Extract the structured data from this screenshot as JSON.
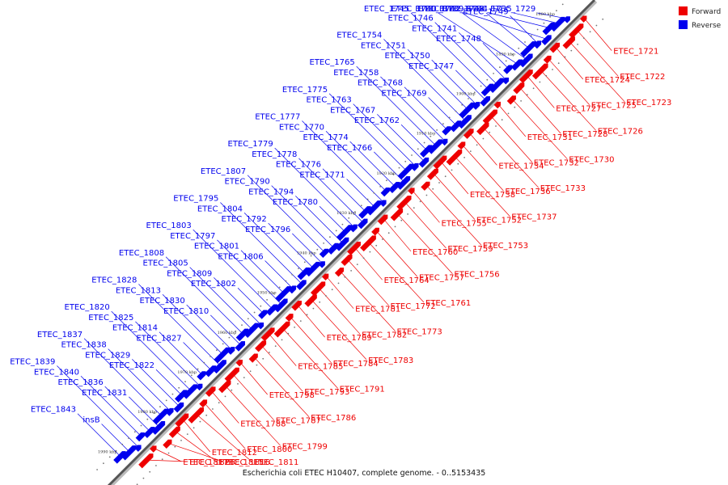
{
  "caption": "Escherichia coli ETEC H10407, complete genome. - 0..5153435",
  "legend": [
    {
      "label": "Forward",
      "color": "#ee0000"
    },
    {
      "label": "Reverse",
      "color": "#0000ee"
    }
  ],
  "colors": {
    "forward": "#ee0000",
    "reverse": "#0000ee",
    "backbone": "#555555"
  },
  "ticks": [
    "1880 kbp",
    "1890 kbp",
    "1900 kbp",
    "1910 kbp",
    "1920 kbp",
    "1930 kbp",
    "1940 kbp",
    "1950 kbp",
    "1960 kbp",
    "1970 kbp",
    "1980 kbp",
    "1990 kbp"
  ],
  "forward_genes": [
    "ETEC_1721",
    "ETEC_1722",
    "ETEC_1723",
    "ETEC_1724",
    "ETEC_1725",
    "ETEC_1726",
    "ETEC_1727",
    "ETEC_1728",
    "ETEC_1730",
    "ETEC_1731",
    "ETEC_1732",
    "ETEC_1733",
    "ETEC_1734",
    "ETEC_1736",
    "ETEC_1737",
    "ETEC_1738",
    "ETEC_1752",
    "ETEC_1753",
    "ETEC_1755",
    "ETEC_1759",
    "ETEC_1756",
    "ETEC_1760",
    "ETEC_1757",
    "ETEC_1761",
    "ETEC_1764",
    "ETEC_1772",
    "ETEC_1773",
    "ETEC_1781",
    "ETEC_1782",
    "ETEC_1783",
    "ETEC_1789",
    "ETEC_1784",
    "ETEC_1791",
    "ETEC_1785",
    "ETEC_1793",
    "ETEC_1786",
    "ETEC_1798",
    "ETEC_1787",
    "ETEC_1799",
    "ETEC_1788",
    "ETEC_1800",
    "ETEC_1811",
    "ETEC_1812",
    "ETEC_1815",
    "ETEC_1816",
    "ETEC_1817",
    "ETEC_1826"
  ],
  "reverse_genes": [
    "ETEC_1729",
    "ETEC_1735",
    "ETEC_1744",
    "ETEC_1739",
    "ETEC_1749",
    "ETEC_1743",
    "ETEC_1742",
    "ETEC_1740",
    "ETEC_1748",
    "ETEC_1741",
    "ETEC_1746",
    "ETEC_1745",
    "ETEC_1747",
    "ETEC_1750",
    "ETEC_1751",
    "ETEC_1754",
    "ETEC_1769",
    "ETEC_1768",
    "ETEC_1758",
    "ETEC_1765",
    "ETEC_1762",
    "ETEC_1767",
    "ETEC_1763",
    "ETEC_1775",
    "ETEC_1766",
    "ETEC_1774",
    "ETEC_1770",
    "ETEC_1777",
    "ETEC_1771",
    "ETEC_1776",
    "ETEC_1778",
    "ETEC_1779",
    "ETEC_1780",
    "ETEC_1794",
    "ETEC_1790",
    "ETEC_1807",
    "ETEC_1796",
    "ETEC_1792",
    "ETEC_1804",
    "ETEC_1795",
    "ETEC_1806",
    "ETEC_1801",
    "ETEC_1797",
    "ETEC_1803",
    "ETEC_1802",
    "ETEC_1809",
    "ETEC_1805",
    "ETEC_1808",
    "ETEC_1810",
    "ETEC_1830",
    "ETEC_1813",
    "ETEC_1828",
    "ETEC_1827",
    "ETEC_1814",
    "ETEC_1825",
    "ETEC_1820",
    "ETEC_1822",
    "ETEC_1829",
    "ETEC_1838",
    "ETEC_1837",
    "ETEC_1831",
    "ETEC_1836",
    "ETEC_1840",
    "ETEC_1839",
    "insB",
    "ETEC_1843"
  ]
}
